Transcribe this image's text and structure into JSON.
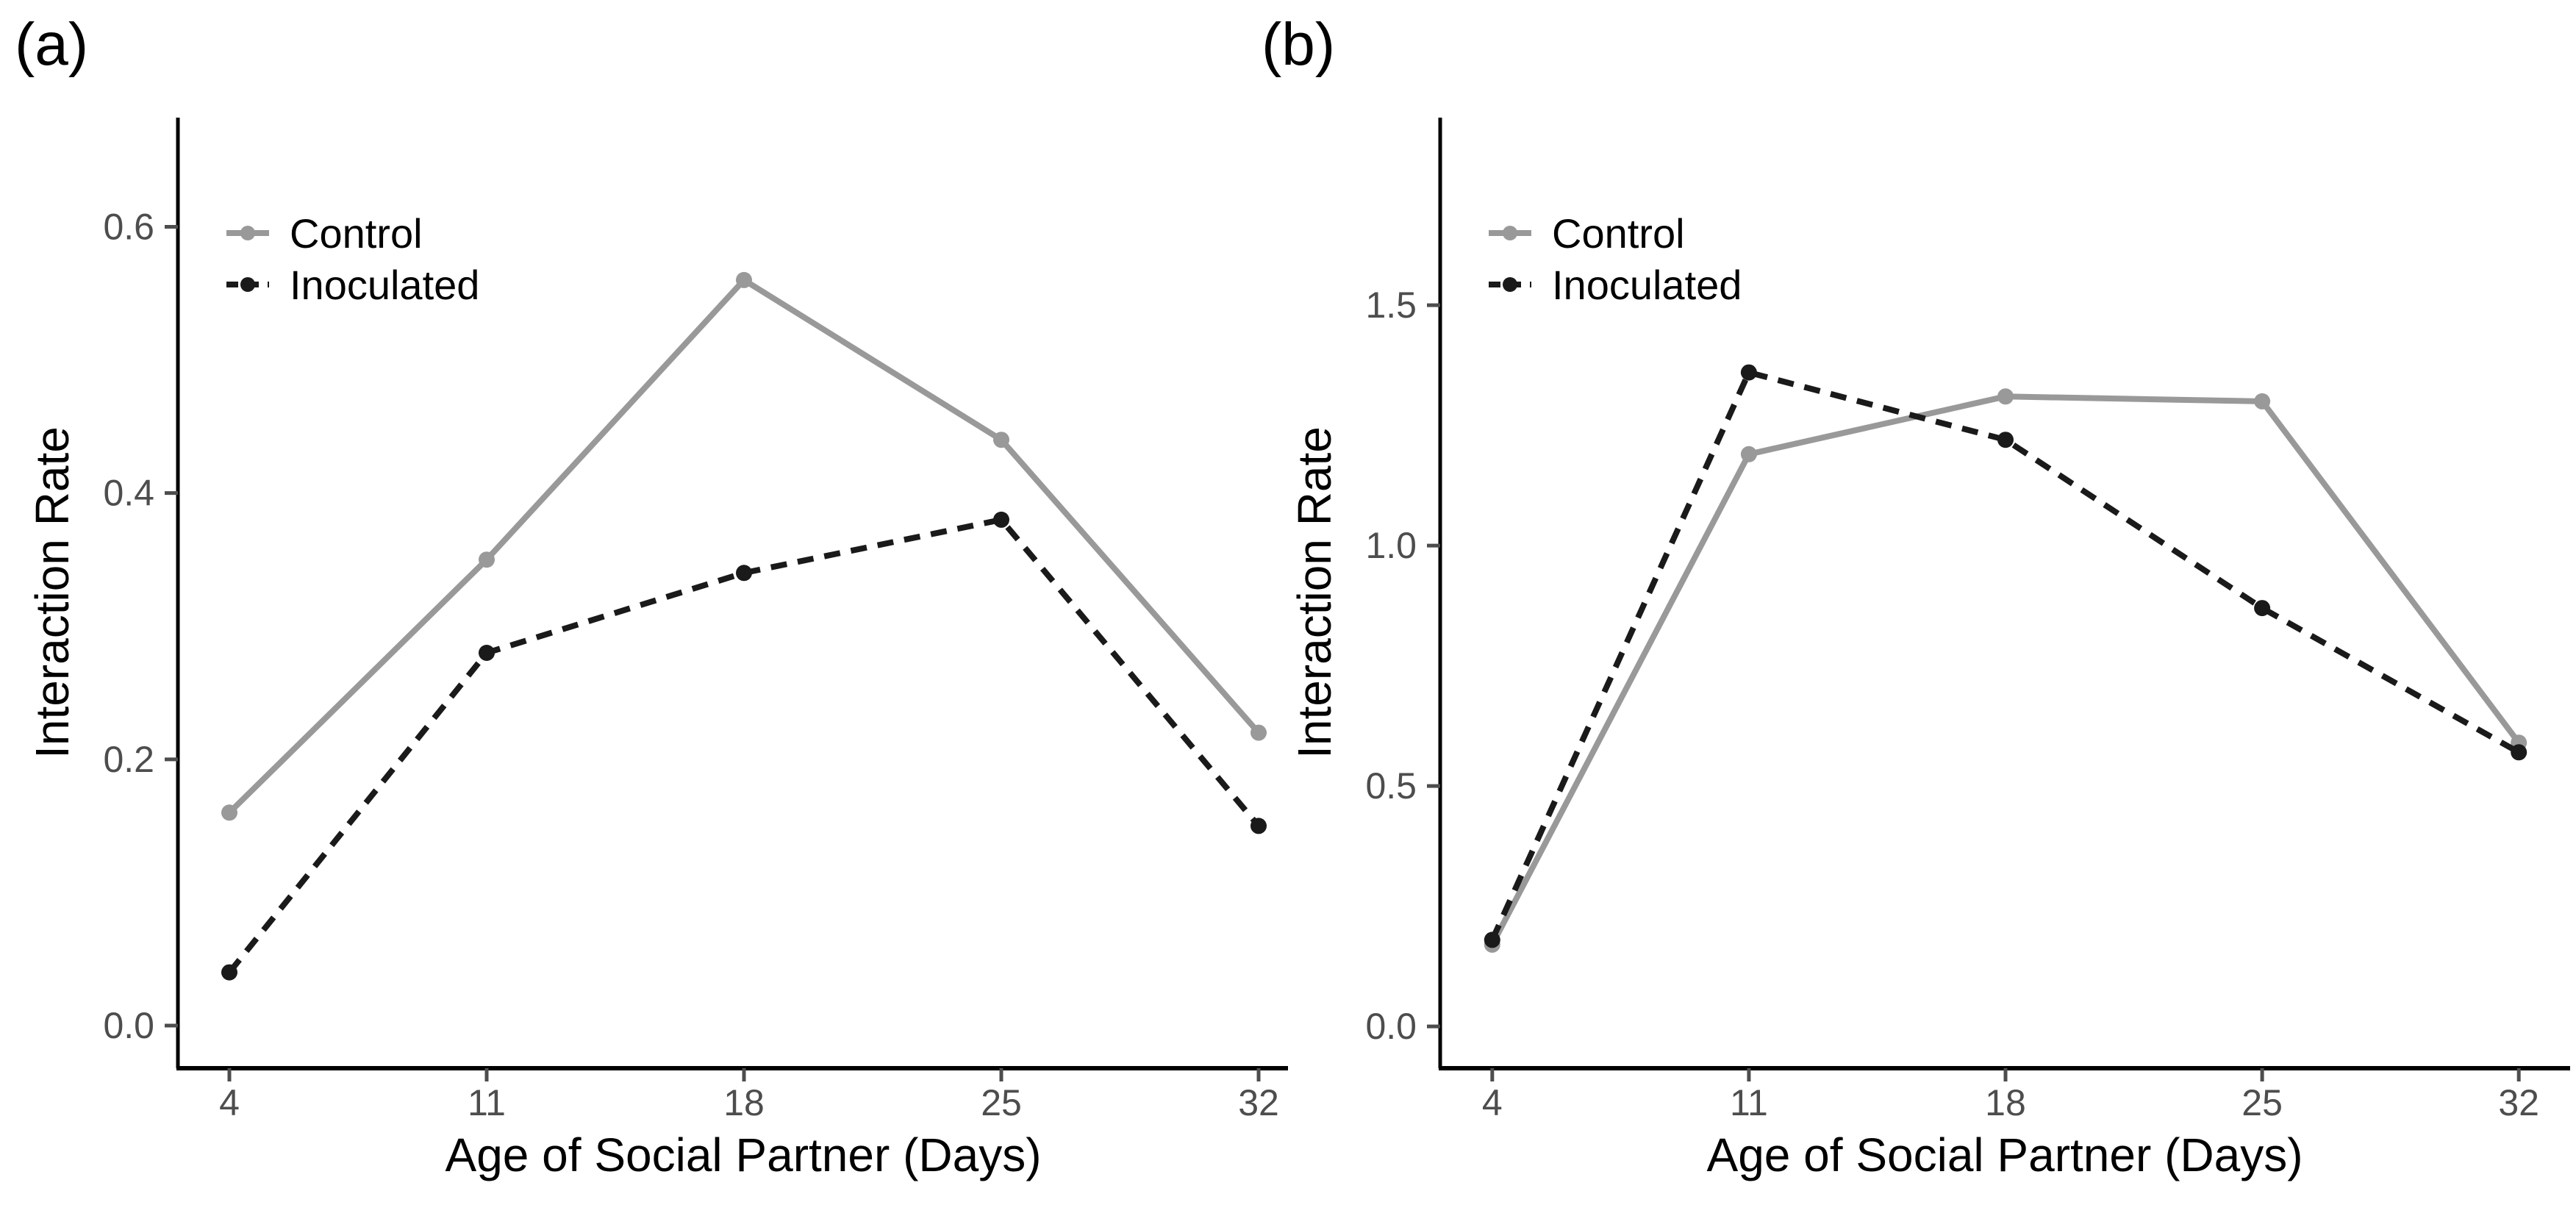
{
  "figure": {
    "type": "two-panel line figure",
    "background": "#ffffff",
    "panel_labels": [
      "(a)",
      "(b)"
    ]
  },
  "legend": {
    "items": [
      "Control",
      "Inoculated"
    ],
    "position": "inside top-left of each panel"
  },
  "colors": {
    "control_line": "#999999",
    "inoculated_line": "#1a1a1a",
    "tick_text": "#4d4d4d",
    "axis_line": "#000000",
    "title_text": "#000000"
  },
  "chart_data": [
    {
      "type": "line",
      "title": "(a)",
      "xlabel": "Age of Social Partner (Days)",
      "ylabel": "Interaction Rate",
      "x": [
        4,
        11,
        18,
        25,
        32
      ],
      "xticks": [
        "4",
        "11",
        "18",
        "25",
        "32"
      ],
      "yticks": [
        {
          "value": 0.0,
          "label": "0.0"
        },
        {
          "value": 0.2,
          "label": "0.2"
        },
        {
          "value": 0.4,
          "label": "0.4"
        },
        {
          "value": 0.6,
          "label": "0.6"
        }
      ],
      "xlim": [
        2.6,
        33.38
      ],
      "ylim": [
        -0.032,
        0.682
      ],
      "grid": false,
      "legend_position": "top-left-inside",
      "series": [
        {
          "name": "Control",
          "values": [
            0.16,
            0.35,
            0.56,
            0.44,
            0.22
          ],
          "color": "#999999",
          "line_style": "solid",
          "marker": "circle"
        },
        {
          "name": "Inoculated",
          "values": [
            0.04,
            0.28,
            0.34,
            0.38,
            0.15
          ],
          "color": "#1a1a1a",
          "line_style": "dashed",
          "marker": "circle"
        }
      ]
    },
    {
      "type": "line",
      "title": "(b)",
      "xlabel": "Age of Social Partner (Days)",
      "ylabel": "Interaction Rate",
      "x": [
        4,
        11,
        18,
        25,
        32
      ],
      "xticks": [
        "4",
        "11",
        "18",
        "25",
        "32"
      ],
      "yticks": [
        {
          "value": 0.0,
          "label": "0.0"
        },
        {
          "value": 0.5,
          "label": "0.5"
        },
        {
          "value": 1.0,
          "label": "1.0"
        },
        {
          "value": 1.5,
          "label": "1.5"
        }
      ],
      "xlim": [
        2.58,
        33.4
      ],
      "ylim": [
        -0.087,
        1.89
      ],
      "grid": false,
      "legend_position": "top-left-inside",
      "series": [
        {
          "name": "Control",
          "values": [
            0.17,
            1.19,
            1.31,
            1.3,
            0.59
          ],
          "color": "#999999",
          "line_style": "solid",
          "marker": "circle"
        },
        {
          "name": "Inoculated",
          "values": [
            0.18,
            1.36,
            1.22,
            0.87,
            0.57
          ],
          "color": "#1a1a1a",
          "line_style": "dashed",
          "marker": "circle"
        }
      ]
    }
  ]
}
